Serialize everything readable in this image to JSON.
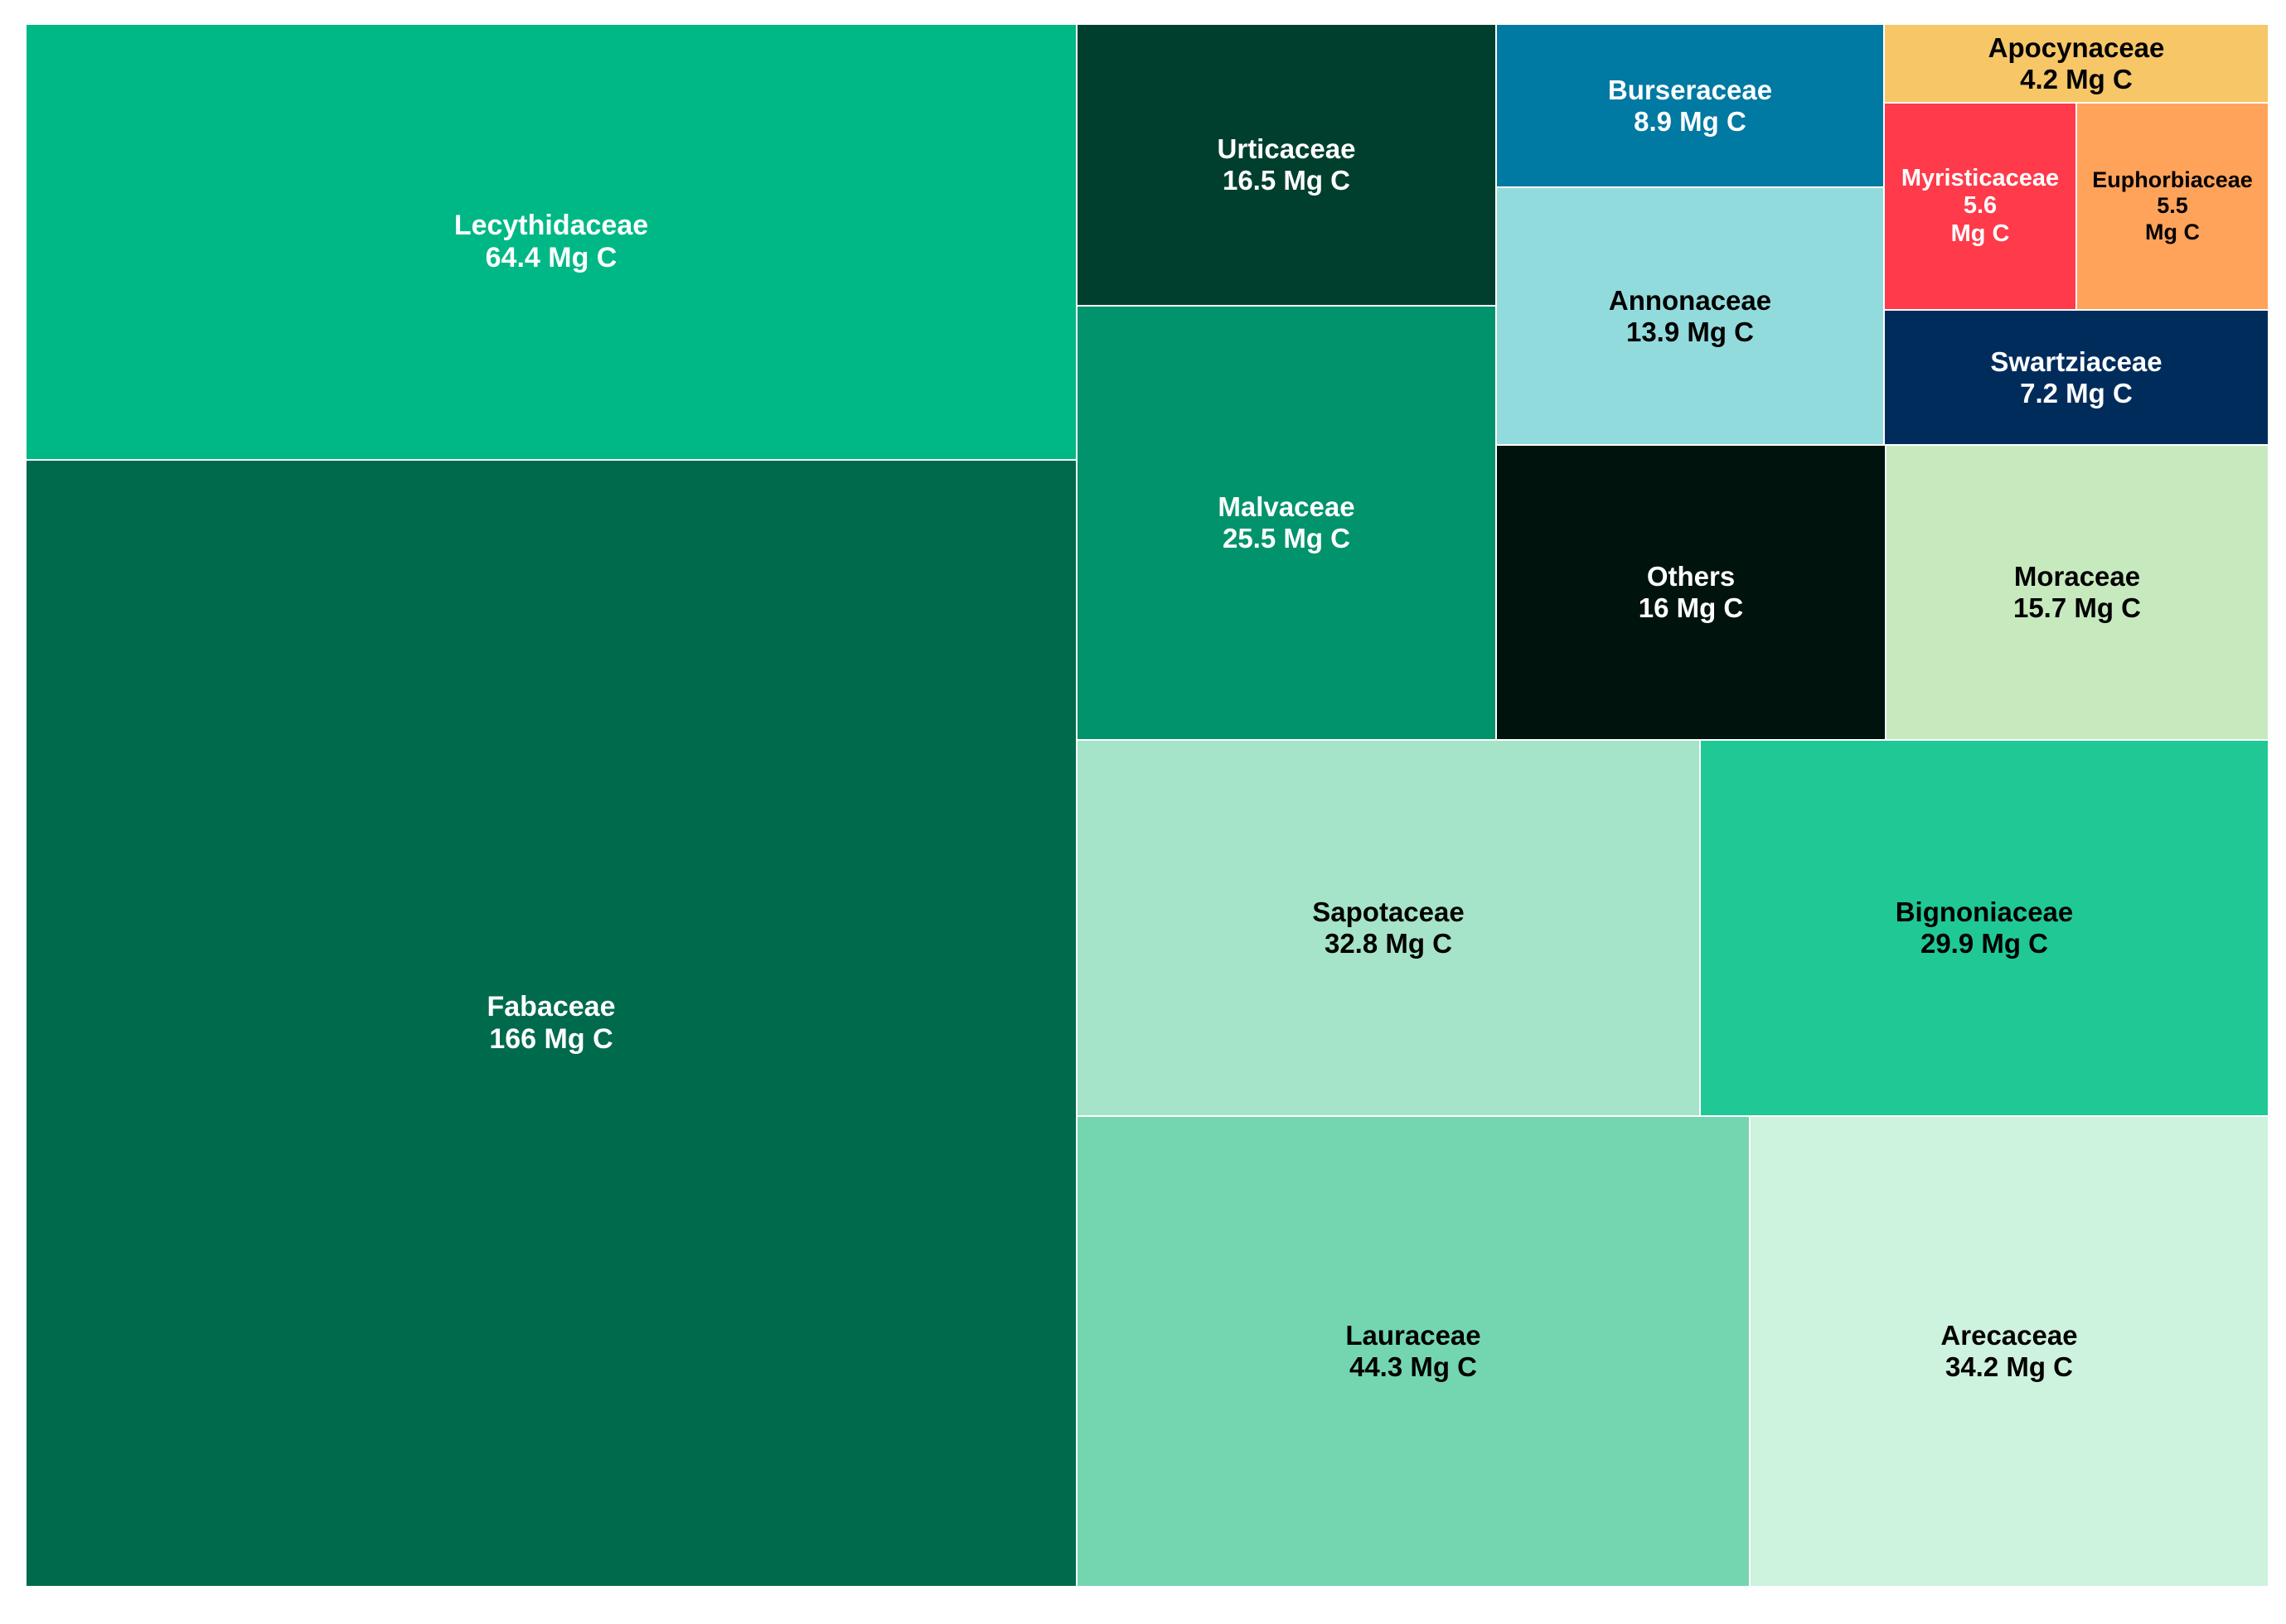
{
  "chart_data": {
    "type": "treemap",
    "unit": "Mg C",
    "nodes": [
      {
        "name": "Fabaceae",
        "value": 166,
        "value_text": "166 Mg C",
        "color": "#006A4D",
        "text_color": "#ffffff"
      },
      {
        "name": "Lecythidaceae",
        "value": 64.4,
        "value_text": "64.4 Mg C",
        "color": "#00B886",
        "text_color": "#ffffff"
      },
      {
        "name": "Urticaceae",
        "value": 16.5,
        "value_text": "16.5 Mg C",
        "color": "#003F2E",
        "text_color": "#ffffff"
      },
      {
        "name": "Malvaceae",
        "value": 25.5,
        "value_text": "25.5 Mg C",
        "color": "#00936C",
        "text_color": "#ffffff"
      },
      {
        "name": "Burseraceae",
        "value": 8.9,
        "value_text": "8.9 Mg C",
        "color": "#0079A3",
        "text_color": "#ffffff"
      },
      {
        "name": "Annonaceae",
        "value": 13.9,
        "value_text": "13.9 Mg C",
        "color": "#92DBDD",
        "text_color": "#000000"
      },
      {
        "name": "Apocynaceae",
        "value": 4.2,
        "value_text": "4.2 Mg C",
        "color": "#F6C667",
        "text_color": "#000000"
      },
      {
        "name": "Myristicaceae",
        "value": 5.6,
        "value_text": "5.6\nMg C",
        "color": "#FF3A4A",
        "text_color": "#ffffff"
      },
      {
        "name": "Euphorbiaceae",
        "value": 5.5,
        "value_text": "5.5\nMg C",
        "color": "#FFA35A",
        "text_color": "#000000"
      },
      {
        "name": "Swartziaceae",
        "value": 7.2,
        "value_text": "7.2 Mg C",
        "color": "#002C5C",
        "text_color": "#ffffff"
      },
      {
        "name": "Others",
        "value": 16,
        "value_text": "16 Mg C",
        "color": "#00130D",
        "text_color": "#ffffff"
      },
      {
        "name": "Moraceae",
        "value": 15.7,
        "value_text": "15.7 Mg C",
        "color": "#C6EABE",
        "text_color": "#000000"
      },
      {
        "name": "Sapotaceae",
        "value": 32.8,
        "value_text": "32.8 Mg C",
        "color": "#A5E4C8",
        "text_color": "#000000"
      },
      {
        "name": "Bignoniaceae",
        "value": 29.9,
        "value_text": "29.9 Mg C",
        "color": "#20C896",
        "text_color": "#000000"
      },
      {
        "name": "Lauraceae",
        "value": 44.3,
        "value_text": "44.3 Mg C",
        "color": "#74D6B1",
        "text_color": "#000000"
      },
      {
        "name": "Arecaceae",
        "value": 34.2,
        "value_text": "34.2 Mg C",
        "color": "#CDF2DD",
        "text_color": "#000000"
      }
    ]
  }
}
